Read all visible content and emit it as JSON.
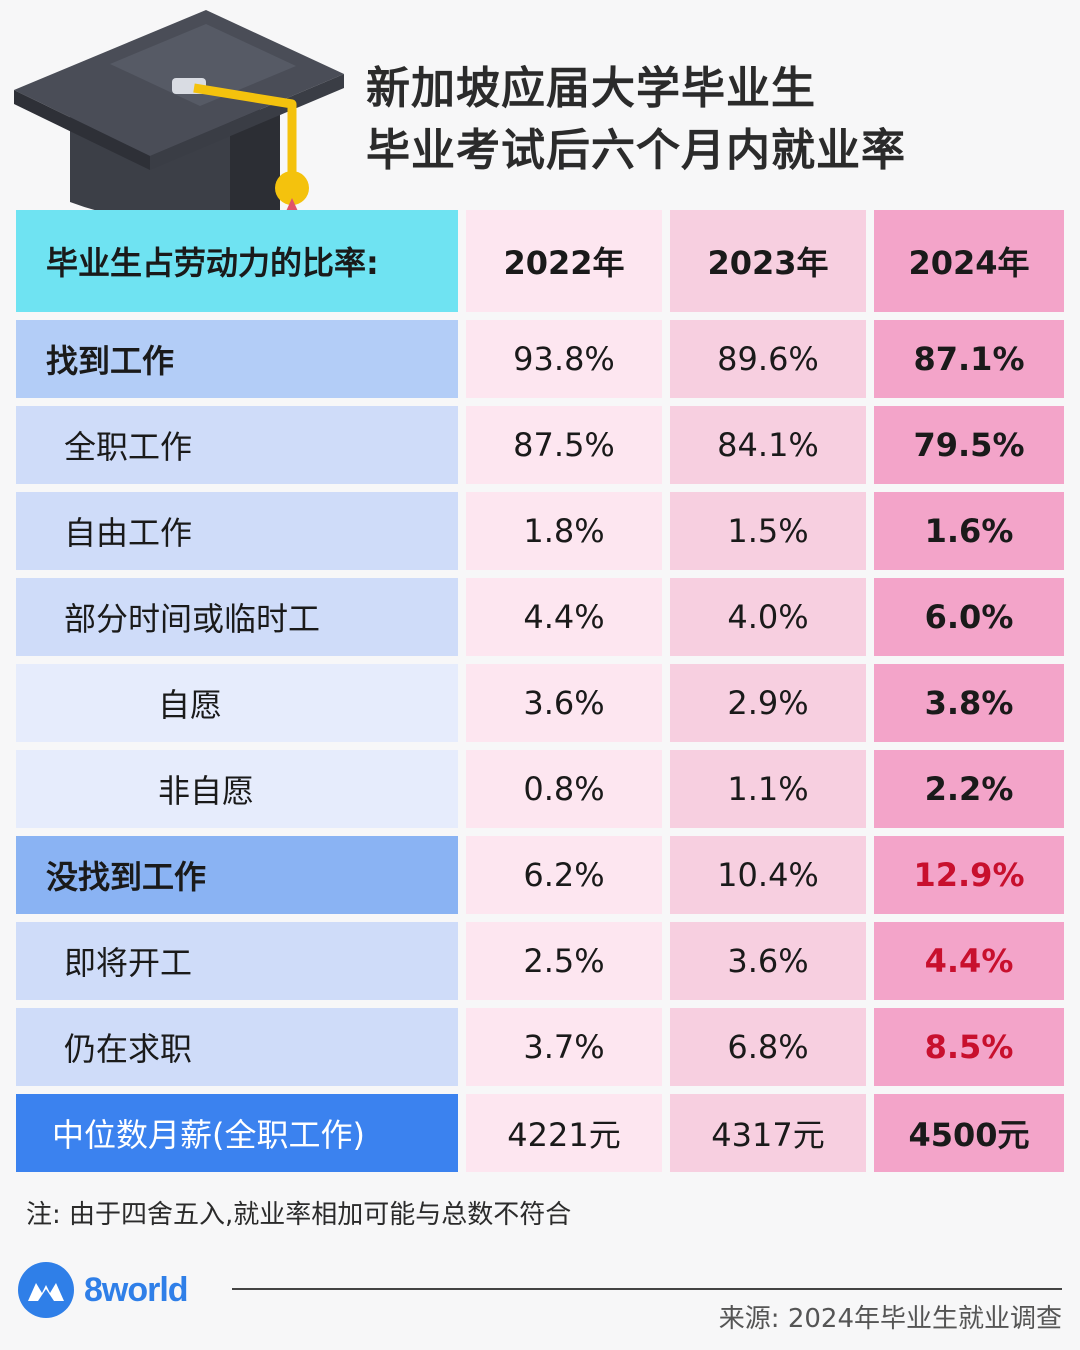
{
  "title": {
    "line1": "新加坡应届大学毕业生",
    "line2": "毕业考试后六个月内就业率"
  },
  "table": {
    "header_label": "毕业生占劳动力的比率:",
    "years": [
      "2022年",
      "2023年",
      "2024年"
    ],
    "rows": [
      {
        "label": "找到工作",
        "values": [
          "93.8%",
          "89.6%",
          "87.1%"
        ]
      },
      {
        "label": "全职工作",
        "values": [
          "87.5%",
          "84.1%",
          "79.5%"
        ]
      },
      {
        "label": "自由工作",
        "values": [
          "1.8%",
          "1.5%",
          "1.6%"
        ]
      },
      {
        "label": "部分时间或临时工",
        "values": [
          "4.4%",
          "4.0%",
          "6.0%"
        ]
      },
      {
        "label": "自愿",
        "values": [
          "3.6%",
          "2.9%",
          "3.8%"
        ]
      },
      {
        "label": "非自愿",
        "values": [
          "0.8%",
          "1.1%",
          "2.2%"
        ]
      },
      {
        "label": "没找到工作",
        "values": [
          "6.2%",
          "10.4%",
          "12.9%"
        ]
      },
      {
        "label": "即将开工",
        "values": [
          "2.5%",
          "3.6%",
          "4.4%"
        ]
      },
      {
        "label": "仍在求职",
        "values": [
          "3.7%",
          "6.8%",
          "8.5%"
        ]
      },
      {
        "label": "中位数月薪(全职工作)",
        "values": [
          "4221元",
          "4317元",
          "4500元"
        ]
      }
    ]
  },
  "note": "注: 由于四舍五入,就业率相加可能与总数不符合",
  "brand": {
    "name": "8world",
    "icon": "8world-logo-icon"
  },
  "source": "来源: 2024年毕业生就业调查",
  "colors": {
    "header_label_bg": "#6fe3f2",
    "col_2022": "#fde6f0",
    "col_2023": "#f7cfe0",
    "col_2024": "#f3a4c9",
    "highlight_red": "#c8102e",
    "salary_bg": "#3b82ef",
    "brand_blue": "#2f7fe8"
  },
  "decoration": {
    "icon": "graduation-cap-icon"
  }
}
